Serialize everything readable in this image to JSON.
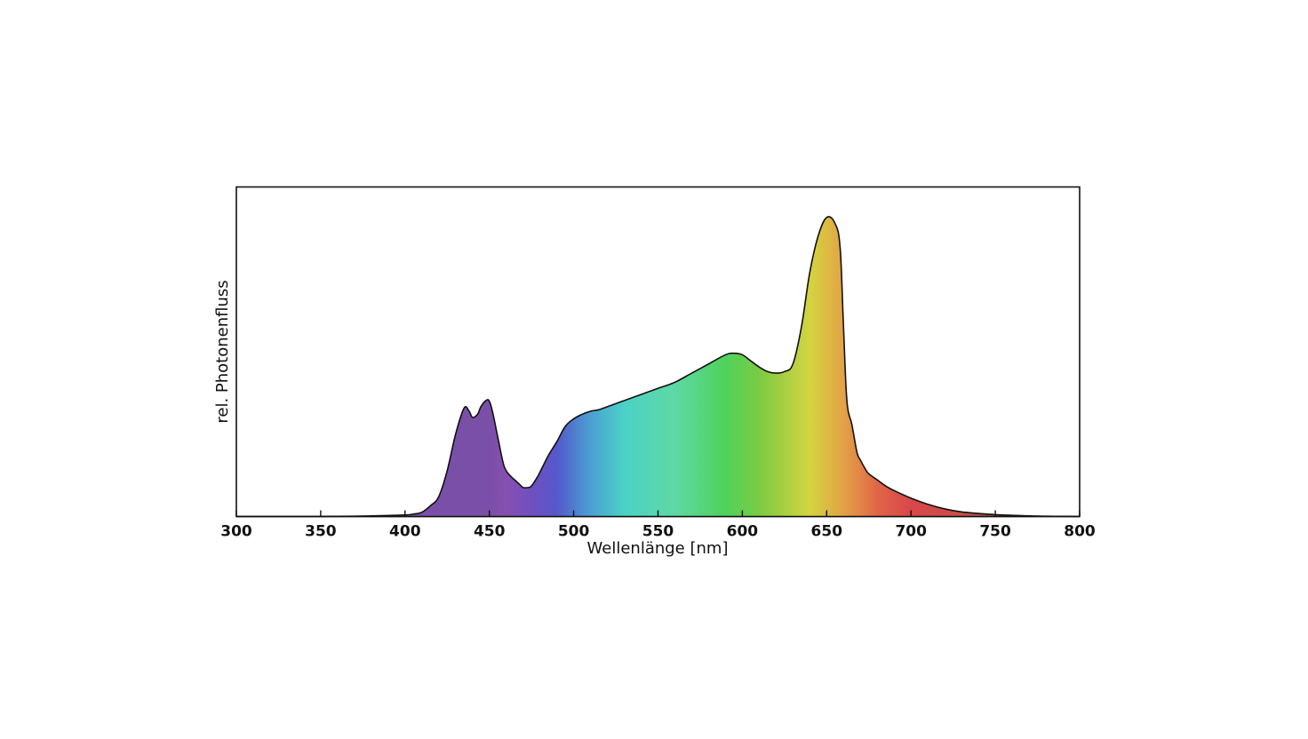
{
  "chart_data": {
    "type": "area",
    "xlabel": "Wellenlänge [nm]",
    "ylabel": "rel. Photonenfluss",
    "xlim": [
      300,
      800
    ],
    "ylim": [
      0,
      1.08
    ],
    "x_ticks": [
      300,
      350,
      400,
      450,
      500,
      550,
      600,
      650,
      700,
      750,
      800
    ],
    "y_ticks_shown": false,
    "grid": false,
    "fill": "spectral-gradient",
    "series": [
      {
        "x": [
          300,
          350,
          380,
          400,
          405,
          410,
          415,
          420,
          425,
          430,
          435,
          438,
          440,
          443,
          445,
          448,
          450,
          452,
          455,
          458,
          460,
          463,
          465,
          468,
          470,
          473,
          475,
          478,
          480,
          485,
          490,
          495,
          500,
          505,
          510,
          515,
          520,
          530,
          540,
          550,
          560,
          570,
          580,
          590,
          595,
          600,
          605,
          610,
          615,
          620,
          625,
          630,
          635,
          640,
          645,
          650,
          655,
          658,
          660,
          662,
          665,
          668,
          670,
          673,
          675,
          680,
          685,
          690,
          700,
          710,
          720,
          730,
          740,
          750,
          760,
          770,
          780,
          790,
          800
        ],
        "y": [
          0.0,
          0.0,
          0.002,
          0.005,
          0.008,
          0.014,
          0.035,
          0.065,
          0.15,
          0.27,
          0.355,
          0.345,
          0.325,
          0.335,
          0.36,
          0.38,
          0.378,
          0.34,
          0.26,
          0.18,
          0.15,
          0.13,
          0.12,
          0.105,
          0.095,
          0.095,
          0.1,
          0.125,
          0.145,
          0.2,
          0.245,
          0.295,
          0.32,
          0.335,
          0.345,
          0.35,
          0.36,
          0.38,
          0.4,
          0.42,
          0.44,
          0.47,
          0.5,
          0.53,
          0.535,
          0.53,
          0.51,
          0.49,
          0.475,
          0.47,
          0.475,
          0.5,
          0.62,
          0.8,
          0.92,
          0.98,
          0.96,
          0.88,
          0.62,
          0.38,
          0.3,
          0.21,
          0.185,
          0.155,
          0.14,
          0.12,
          0.1,
          0.085,
          0.06,
          0.04,
          0.025,
          0.015,
          0.01,
          0.006,
          0.004,
          0.002,
          0.001,
          0.0005,
          0.0
        ]
      }
    ]
  }
}
